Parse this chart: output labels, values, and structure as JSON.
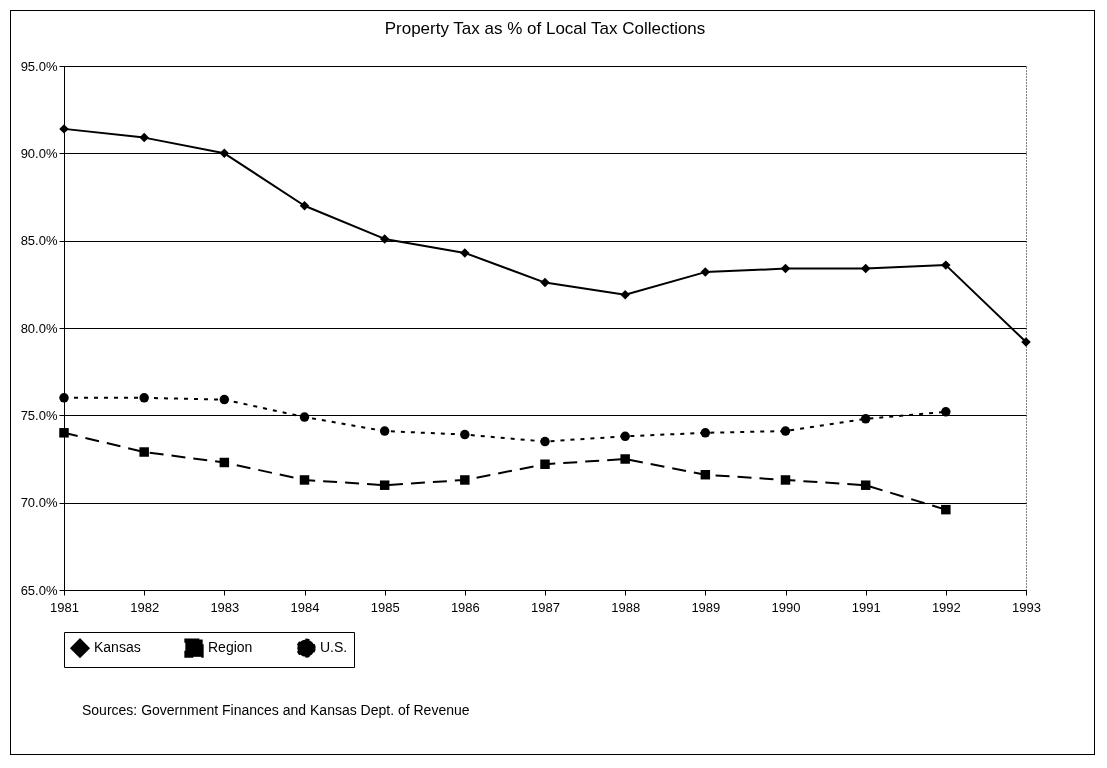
{
  "chart_data": {
    "type": "line",
    "title": "Property Tax as % of Local Tax Collections",
    "categories": [
      "1981",
      "1982",
      "1983",
      "1984",
      "1985",
      "1986",
      "1987",
      "1988",
      "1989",
      "1990",
      "1991",
      "1992",
      "1993"
    ],
    "series": [
      {
        "name": "Kansas",
        "color": "#000000",
        "marker": "diamond",
        "line_style": "solid",
        "values": [
          91.4,
          90.9,
          90.0,
          87.0,
          85.1,
          84.3,
          82.6,
          81.9,
          83.2,
          83.4,
          83.4,
          83.6,
          79.2
        ]
      },
      {
        "name": "Region",
        "color": "#000000",
        "marker": "square",
        "line_style": "dashed",
        "values": [
          74.0,
          72.9,
          72.3,
          71.3,
          71.0,
          71.3,
          72.2,
          72.5,
          71.6,
          71.3,
          71.0,
          69.6,
          null
        ]
      },
      {
        "name": "U.S.",
        "color": "#000000",
        "marker": "circle",
        "line_style": "dotted",
        "values": [
          76.0,
          76.0,
          75.9,
          74.9,
          74.1,
          73.9,
          73.5,
          73.8,
          74.0,
          74.1,
          74.8,
          75.2,
          null
        ]
      }
    ],
    "ylim": [
      65,
      95
    ],
    "yticks": [
      {
        "value": 65,
        "label": "65.0%"
      },
      {
        "value": 70,
        "label": "70.0%"
      },
      {
        "value": 75,
        "label": "75.0%"
      },
      {
        "value": 80,
        "label": "80.0%"
      },
      {
        "value": 85,
        "label": "85.0%"
      },
      {
        "value": 90,
        "label": "90.0%"
      },
      {
        "value": 95,
        "label": "95.0%"
      }
    ],
    "grid": "y",
    "legend": "bottom",
    "annotations": [
      "Sources: Government Finances and Kansas Dept. of Revenue"
    ]
  }
}
